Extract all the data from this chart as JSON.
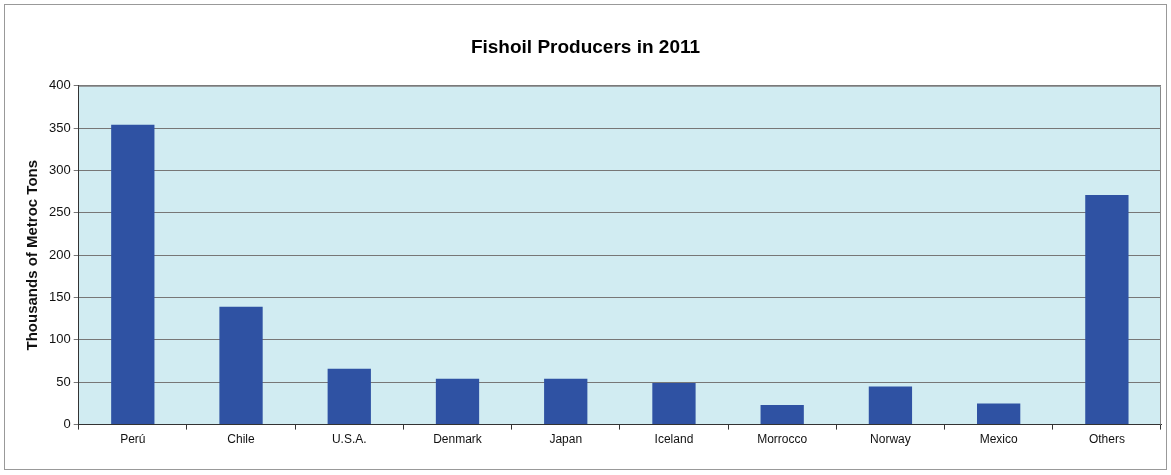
{
  "chart_data": {
    "type": "bar",
    "title": "Fishoil Producers in 2011",
    "ylabel": "Thousands of Metroc Tons",
    "categories": [
      "Perú",
      "Chile",
      "U.S.A.",
      "Denmark",
      "Japan",
      "Iceland",
      "Morrocco",
      "Norway",
      "Mexico",
      "Others"
    ],
    "values": [
      354,
      139,
      66,
      54,
      54,
      49,
      23,
      45,
      25,
      271
    ],
    "color": "#2f52a3",
    "ylim": [
      0,
      400
    ],
    "yticks": [
      0,
      50,
      100,
      150,
      200,
      250,
      300,
      350,
      400
    ],
    "grid": "y",
    "legend": false
  }
}
